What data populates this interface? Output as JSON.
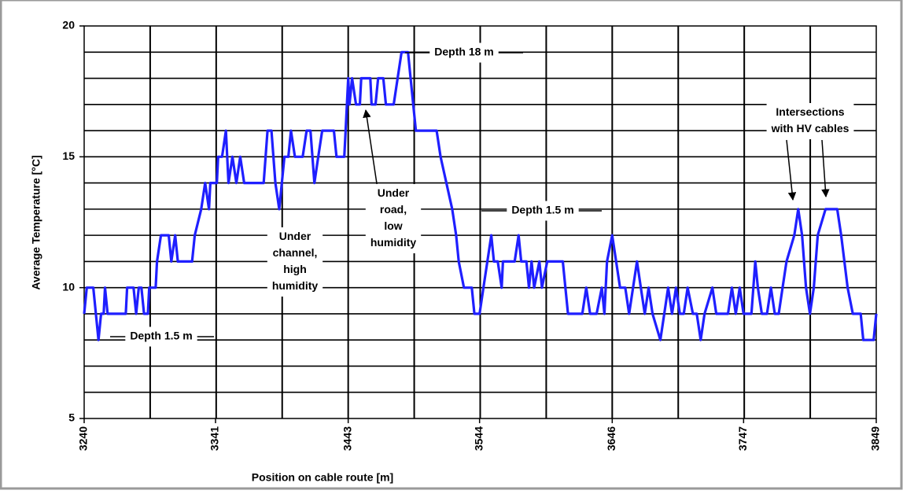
{
  "chart_data": {
    "type": "line",
    "y_label": "Average Temperature [°C]",
    "x_label": "Position on cable route [m]",
    "xlim": [
      3240,
      3849
    ],
    "xticks": [
      3240,
      3341,
      3443,
      3544,
      3646,
      3747,
      3849
    ],
    "xgrid": [
      3290.75,
      3341.5,
      3392.25,
      3443,
      3493.75,
      3544.5,
      3595.25,
      3646,
      3696.75,
      3747.5,
      3798.25
    ],
    "ylim": [
      5,
      20
    ],
    "yticks": [
      5,
      10,
      15,
      20
    ],
    "ygrid": [
      6,
      7,
      8,
      9,
      10,
      11,
      12,
      13,
      14,
      15,
      16,
      17,
      18,
      19
    ],
    "grid": true,
    "series": [
      {
        "color": "#1f1fff",
        "x": [
          3240,
          3242,
          3247,
          3249,
          3251,
          3253,
          3255,
          3256,
          3258,
          3266,
          3272,
          3273,
          3278,
          3280,
          3282,
          3284,
          3286,
          3289,
          3290,
          3295,
          3296,
          3299,
          3305,
          3307,
          3310,
          3312,
          3323,
          3325,
          3330,
          3333,
          3336,
          3337,
          3342,
          3343,
          3346,
          3349,
          3351,
          3354,
          3357,
          3360,
          3363,
          3378,
          3381,
          3384,
          3387,
          3390,
          3392,
          3394,
          3397,
          3399,
          3402,
          3408,
          3411,
          3414,
          3417,
          3420,
          3423,
          3432,
          3434,
          3440,
          3441,
          3443,
          3444,
          3446,
          3449,
          3452,
          3453,
          3460,
          3461,
          3464,
          3466,
          3470,
          3472,
          3478,
          3481,
          3484,
          3489,
          3491,
          3495,
          3511,
          3514,
          3523,
          3526,
          3528,
          3532,
          3538,
          3540,
          3544,
          3547,
          3550,
          3553,
          3555,
          3558,
          3561,
          3562,
          3571,
          3574,
          3576,
          3580,
          3582,
          3584,
          3586,
          3590,
          3592,
          3596,
          3608,
          3610,
          3612,
          3623,
          3626,
          3629,
          3634,
          3638,
          3640,
          3642,
          3646,
          3649,
          3652,
          3656,
          3659,
          3662,
          3665,
          3668,
          3671,
          3674,
          3677,
          3683,
          3686,
          3689,
          3692,
          3695,
          3698,
          3701,
          3704,
          3708,
          3711,
          3714,
          3717,
          3723,
          3726,
          3735,
          3738,
          3741,
          3744,
          3747,
          3753,
          3756,
          3758,
          3761,
          3765,
          3768,
          3771,
          3774,
          3777,
          3780,
          3786,
          3789,
          3792,
          3795,
          3798,
          3801,
          3804,
          3810,
          3819,
          3822,
          3827,
          3831,
          3837,
          3839,
          3844,
          3847,
          3849
        ],
        "values": [
          9,
          10,
          10,
          9,
          8,
          9,
          9,
          10,
          9,
          9,
          9,
          10,
          10,
          9,
          10,
          10,
          9,
          9,
          10,
          10,
          11,
          12,
          12,
          11,
          12,
          11,
          11,
          12,
          13,
          14,
          13,
          14,
          14,
          15,
          15,
          16,
          14,
          15,
          14,
          15,
          14,
          14,
          16,
          16,
          14,
          13,
          14,
          15,
          15,
          16,
          15,
          15,
          16,
          16,
          14,
          15,
          16,
          16,
          15,
          15,
          16,
          18,
          17,
          18,
          17,
          17,
          18,
          18,
          17,
          17,
          18,
          18,
          17,
          17,
          18,
          19,
          19,
          18,
          16,
          16,
          15,
          13,
          12,
          11,
          10,
          10,
          9,
          9,
          10,
          11,
          12,
          11,
          11,
          10,
          11,
          11,
          12,
          11,
          11,
          10,
          11,
          10,
          11,
          10,
          11,
          11,
          10,
          9,
          9,
          10,
          9,
          9,
          10,
          9,
          11,
          12,
          11,
          10,
          10,
          9,
          10,
          11,
          10,
          9,
          10,
          9,
          8,
          9,
          10,
          9,
          10,
          9,
          9,
          10,
          9,
          9,
          8,
          9,
          10,
          9,
          9,
          10,
          9,
          10,
          9,
          9,
          11,
          10,
          9,
          9,
          10,
          9,
          9,
          10,
          11,
          12,
          13,
          12,
          10,
          9,
          10,
          12,
          13,
          13,
          12,
          10,
          9,
          9,
          8,
          8,
          8,
          9
        ]
      }
    ],
    "annotations": [
      {
        "lines": [
          "Depth 18 m"
        ]
      },
      {
        "lines": [
          "Under",
          "road,",
          "low",
          "humidity"
        ]
      },
      {
        "lines": [
          "Under",
          "channel,",
          "high",
          "humidity"
        ]
      },
      {
        "lines": [
          "Depth 1.5 m"
        ]
      },
      {
        "lines": [
          "Depth 1.5 m"
        ]
      },
      {
        "lines": [
          "Intersections",
          "with HV cables"
        ]
      }
    ]
  }
}
